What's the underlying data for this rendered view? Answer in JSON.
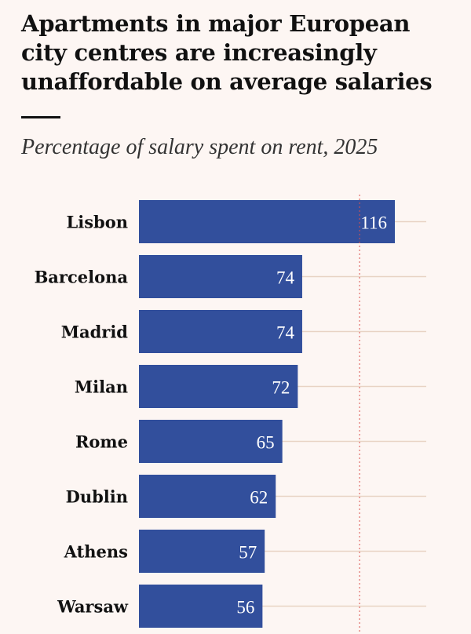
{
  "chart_data": {
    "type": "bar",
    "orientation": "horizontal",
    "title": "Apartments in major European city centres are increasingly unaffordable on average salaries",
    "subtitle": "Percentage of salary spent on rent, 2025",
    "categories": [
      "Lisbon",
      "Barcelona",
      "Madrid",
      "Milan",
      "Rome",
      "Dublin",
      "Athens",
      "Warsaw"
    ],
    "values": [
      116,
      74,
      74,
      72,
      65,
      62,
      57,
      56
    ],
    "reference_line": 100,
    "xlim": [
      0,
      130
    ],
    "grid": true,
    "colors": {
      "bar": "#324f9c",
      "label": "#ffffff",
      "reference_line": "#d9534f",
      "grid": "#e8d3c4",
      "background": "#fdf6f3"
    }
  }
}
